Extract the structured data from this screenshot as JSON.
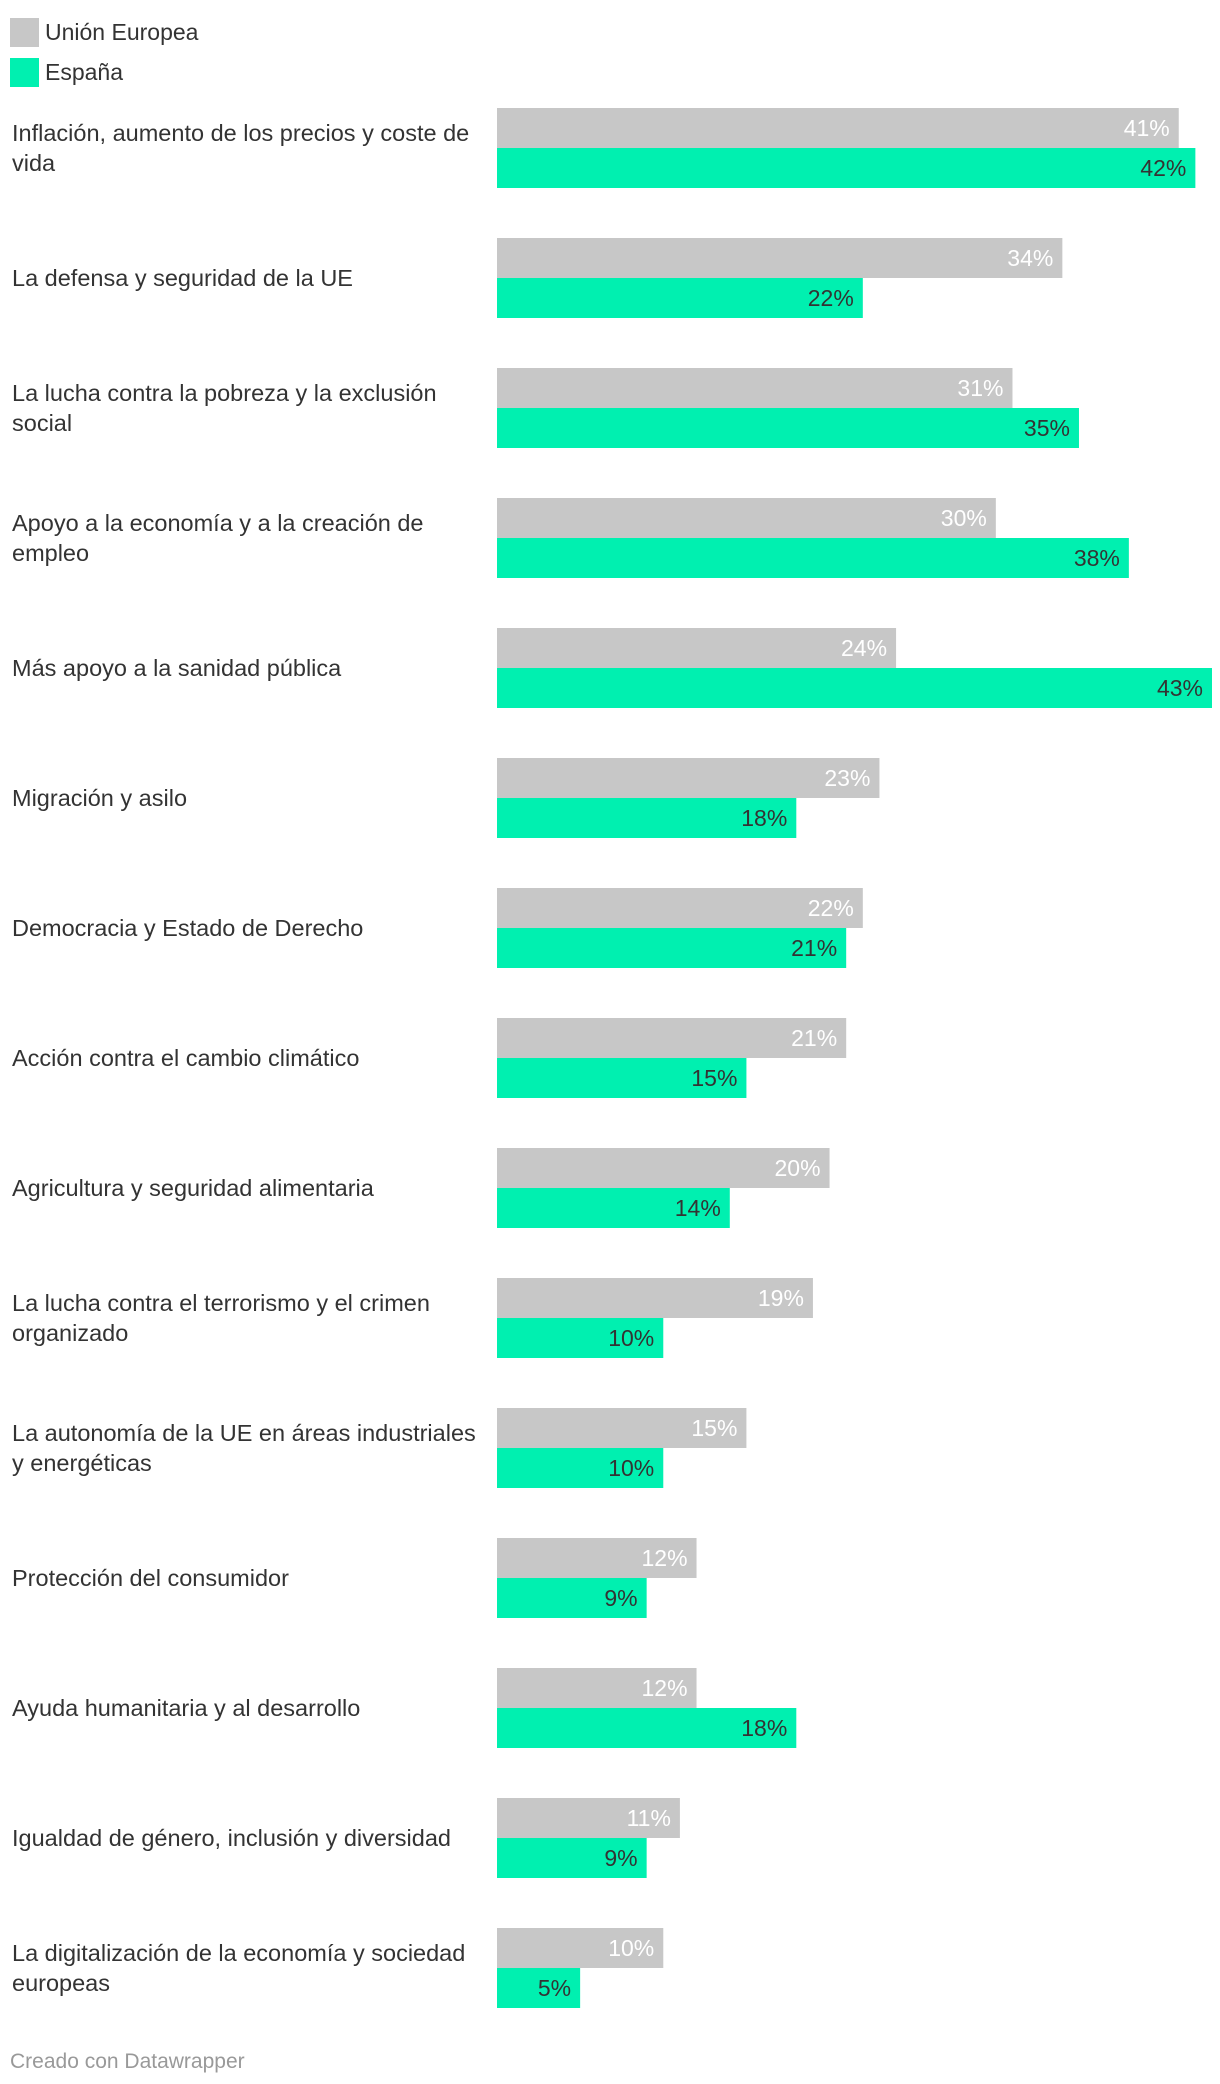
{
  "legend": {
    "items": [
      {
        "label": "Unión Europea",
        "color": "#c7c7c7"
      },
      {
        "label": "España",
        "color": "#00f0b0"
      }
    ]
  },
  "footer": {
    "credit": "Creado con Datawrapper"
  },
  "chart_data": {
    "type": "bar",
    "orientation": "horizontal",
    "value_suffix": "%",
    "categories": [
      [
        "Inflación, aumento de los precios y coste de",
        "vida"
      ],
      [
        "La defensa y seguridad de la UE"
      ],
      [
        "La lucha contra la pobreza y la exclusión",
        "social"
      ],
      [
        "Apoyo a la economía y a la creación de",
        "empleo"
      ],
      [
        "Más apoyo a la sanidad pública"
      ],
      [
        "Migración y asilo"
      ],
      [
        "Democracia y Estado de Derecho"
      ],
      [
        "Acción contra el cambio climático"
      ],
      [
        "Agricultura y seguridad alimentaria"
      ],
      [
        "La lucha contra el terrorismo y el crimen",
        "organizado"
      ],
      [
        "La autonomía de la UE en áreas industriales",
        "y energéticas"
      ],
      [
        "Protección del consumidor"
      ],
      [
        "Ayuda humanitaria y al desarrollo"
      ],
      [
        "Igualdad de género, inclusión y diversidad"
      ],
      [
        "La digitalización de la economía y sociedad",
        "europeas"
      ]
    ],
    "series": [
      {
        "name": "Unión Europea",
        "color": "#c7c7c7",
        "label_color": "#ffffff",
        "values": [
          41,
          34,
          31,
          30,
          24,
          23,
          22,
          21,
          20,
          19,
          15,
          12,
          12,
          11,
          10
        ]
      },
      {
        "name": "España",
        "color": "#00f0b0",
        "label_color": "#333333",
        "values": [
          42,
          22,
          35,
          38,
          43,
          18,
          21,
          15,
          14,
          10,
          10,
          9,
          18,
          9,
          5
        ]
      }
    ],
    "xlim": [
      0,
      43
    ],
    "grid": false,
    "legend_position": "top-left"
  }
}
